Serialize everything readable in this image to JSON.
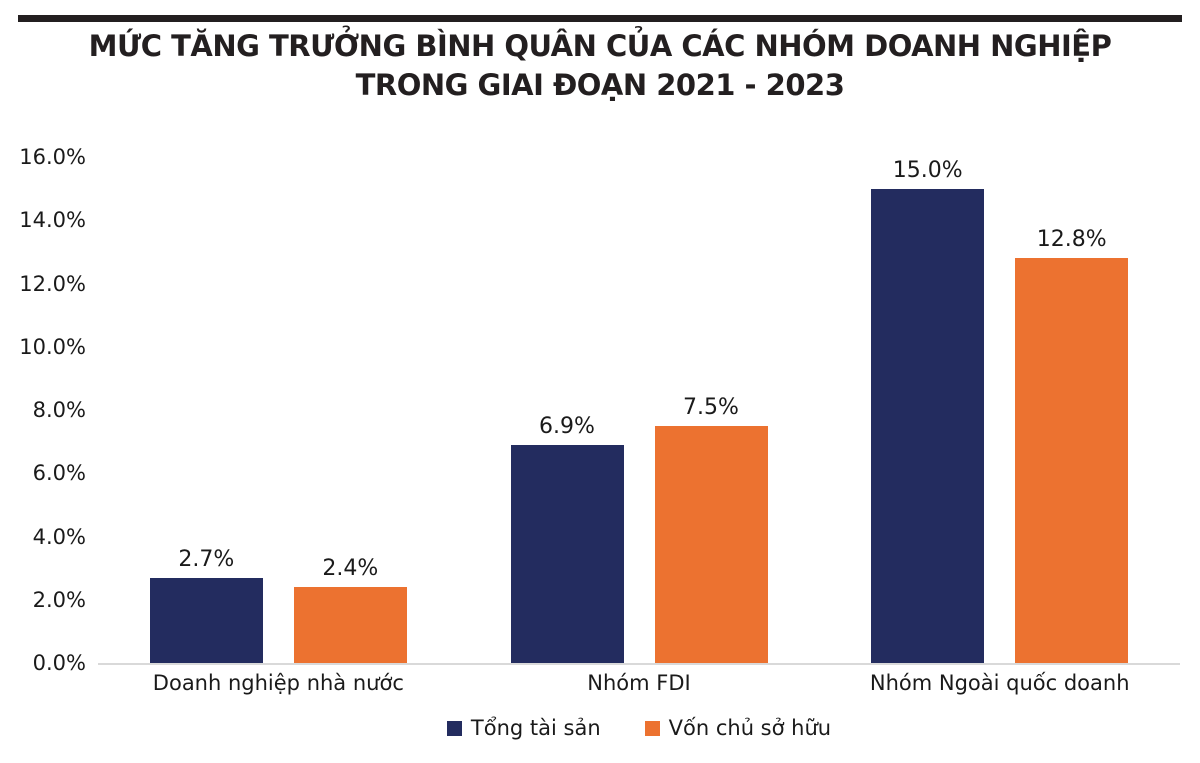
{
  "header": {
    "title_line1": "MỨC TĂNG TRƯỞNG BÌNH QUÂN CỦA CÁC NHÓM DOANH NGHIỆP",
    "title_line2": "TRONG GIAI ĐOẠN 2021 - 2023"
  },
  "colors": {
    "series1": "#232C5F",
    "series2": "#EC7230",
    "axis_line": "#D9D9D9",
    "title_text": "#231F20",
    "label_text": "#1A1A1A"
  },
  "chart_data": {
    "type": "bar",
    "title": "MỨC TĂNG TRƯỞNG BÌNH QUÂN CỦA CÁC NHÓM DOANH NGHIỆP TRONG GIAI ĐOẠN 2021 - 2023",
    "categories": [
      "Doanh nghiệp nhà nước",
      "Nhóm FDI",
      "Nhóm Ngoài quốc doanh"
    ],
    "series": [
      {
        "name": "Tổng tài sản",
        "color": "#232C5F",
        "values": [
          2.7,
          6.9,
          15.0
        ],
        "labels": [
          "2.7%",
          "6.9%",
          "15.0%"
        ]
      },
      {
        "name": "Vốn chủ sở hữu",
        "color": "#EC7230",
        "values": [
          2.4,
          7.5,
          12.8
        ],
        "labels": [
          "2.4%",
          "7.5%",
          "12.8%"
        ]
      }
    ],
    "xlabel": "",
    "ylabel": "",
    "ylim": [
      0,
      16
    ],
    "ytick_step": 2,
    "ytick_labels": [
      "0.0%",
      "2.0%",
      "4.0%",
      "6.0%",
      "8.0%",
      "10.0%",
      "12.0%",
      "14.0%",
      "16.0%"
    ],
    "grid": false,
    "legend_position": "bottom"
  }
}
